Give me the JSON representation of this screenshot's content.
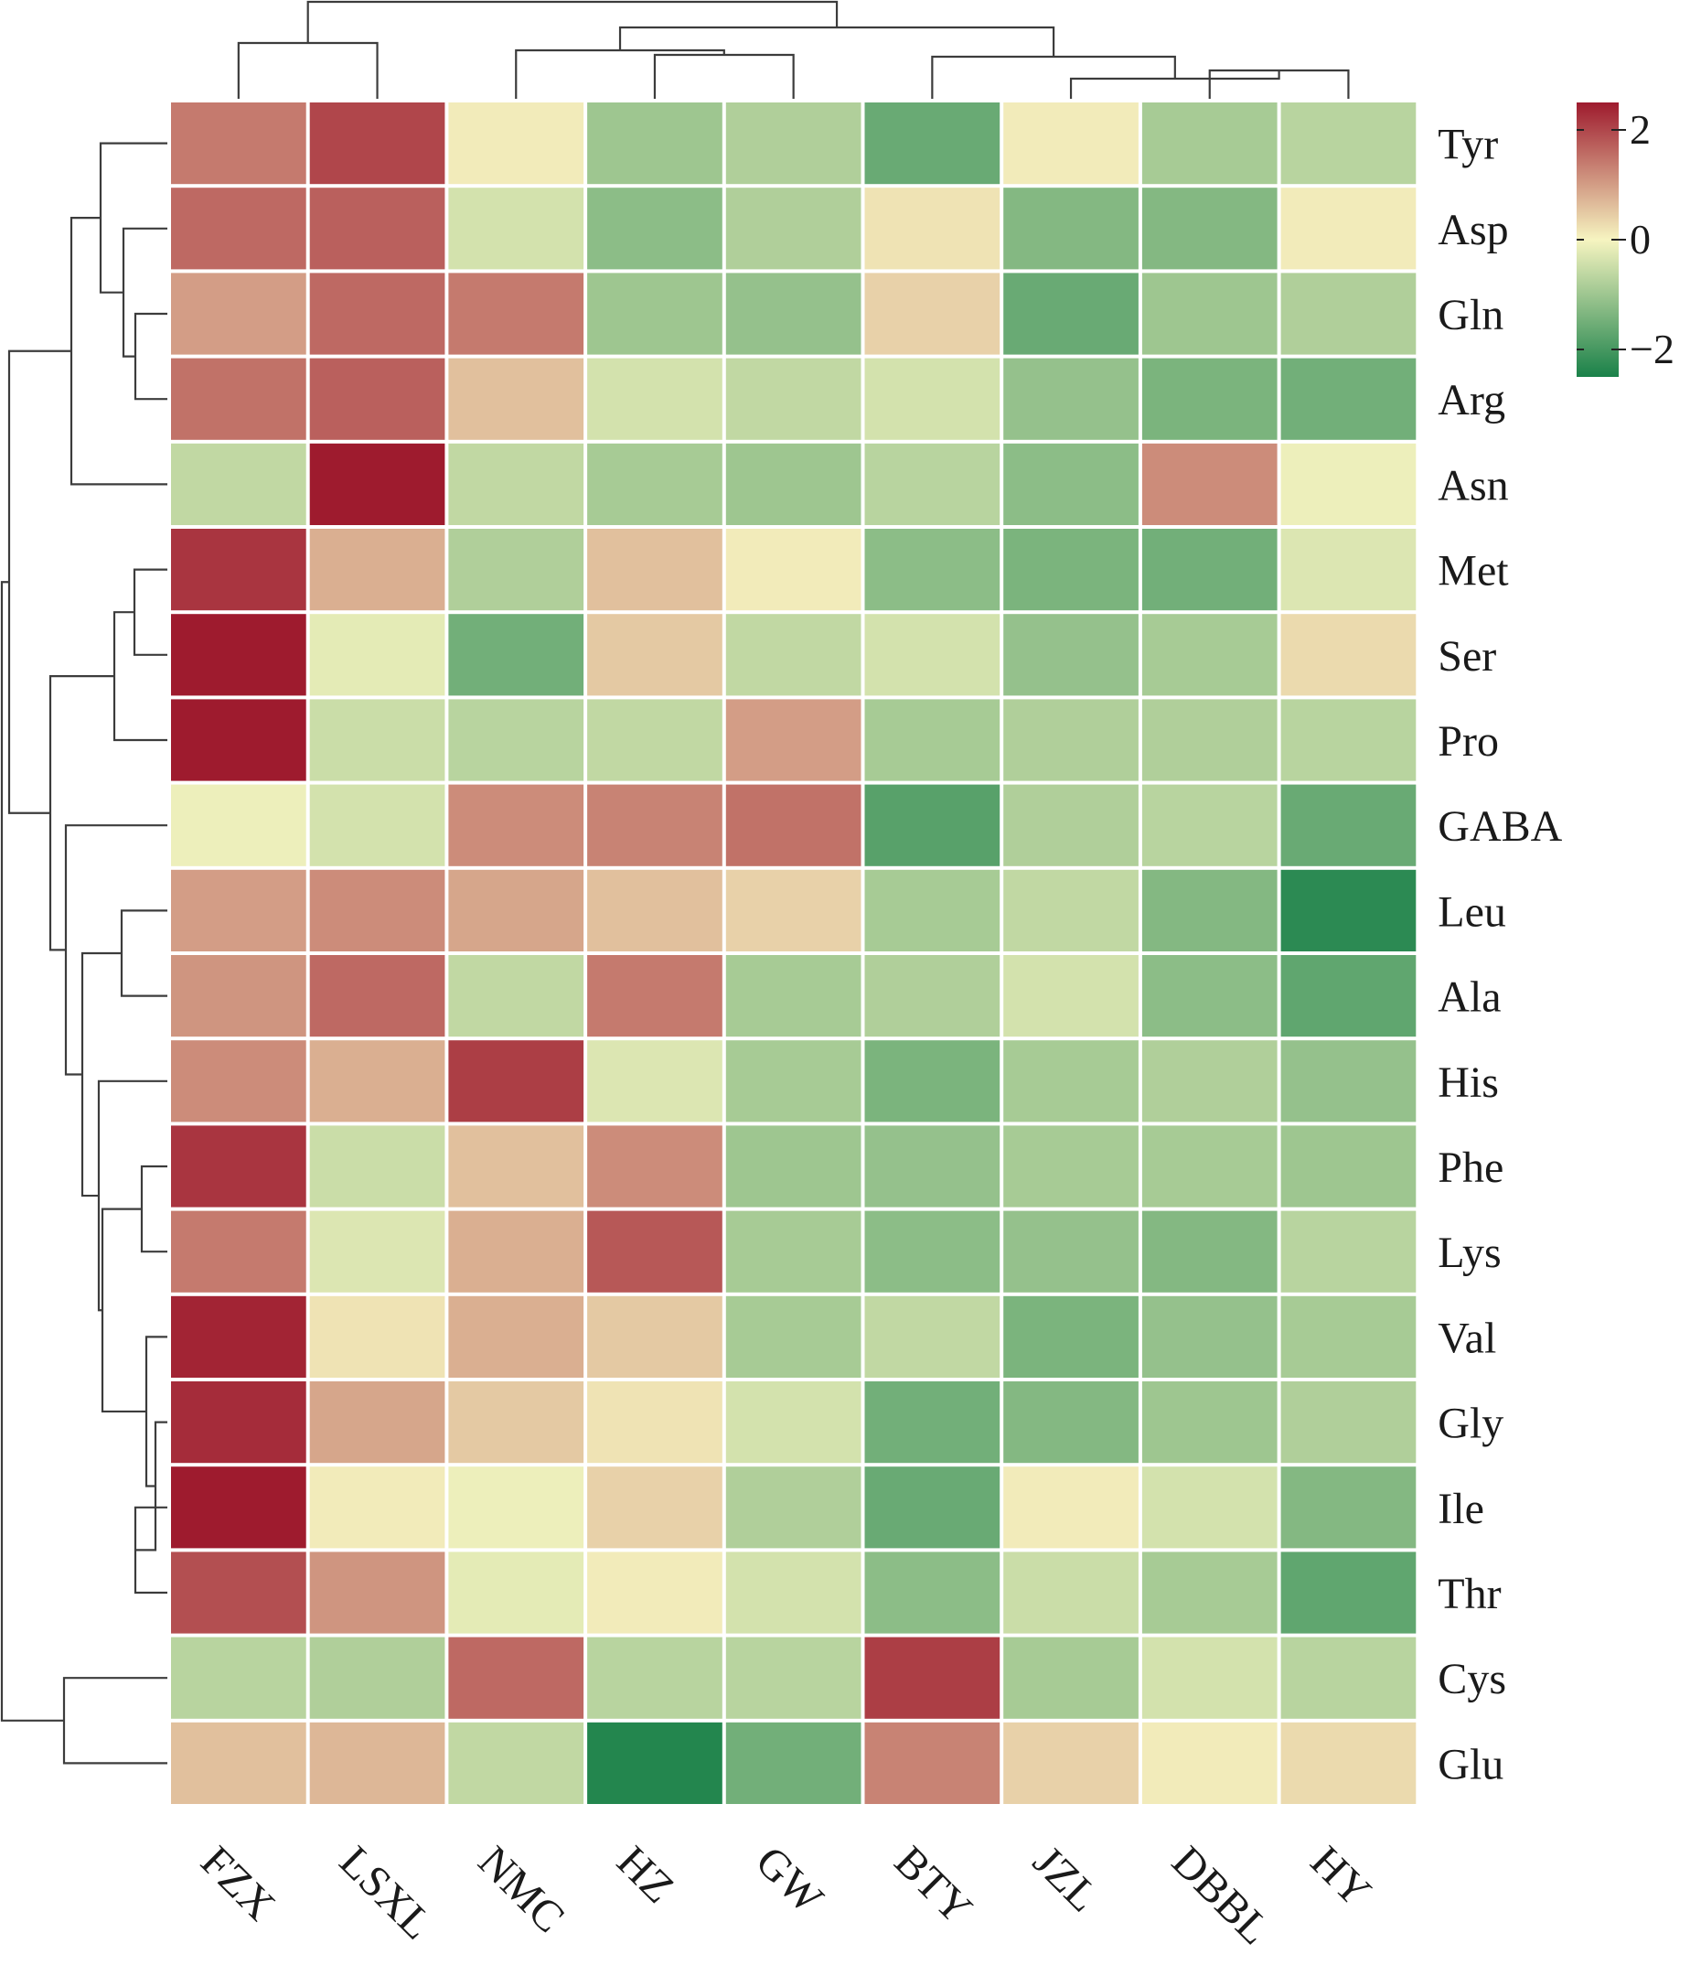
{
  "chart_data": {
    "type": "heatmap",
    "title": "",
    "columns": [
      "FZX",
      "LSXL",
      "NMC",
      "HZ",
      "GW",
      "BTY",
      "JZL",
      "DBBL",
      "HY"
    ],
    "rows": [
      "Tyr",
      "Asp",
      "Gln",
      "Arg",
      "Asn",
      "Met",
      "Ser",
      "Pro",
      "GABA",
      "Leu",
      "Ala",
      "His",
      "Phe",
      "Lys",
      "Val",
      "Gly",
      "Ile",
      "Thr",
      "Cys",
      "Glu"
    ],
    "values": [
      [
        1.4,
        2.0,
        0.1,
        -1.0,
        -0.8,
        -1.6,
        0.1,
        -0.9,
        -0.7
      ],
      [
        1.6,
        1.7,
        -0.4,
        -1.2,
        -0.8,
        0.2,
        -1.3,
        -1.3,
        0.1
      ],
      [
        1.0,
        1.6,
        1.4,
        -1.0,
        -1.1,
        0.4,
        -1.6,
        -1.0,
        -0.8
      ],
      [
        1.5,
        1.7,
        0.6,
        -0.4,
        -0.6,
        -0.4,
        -1.1,
        -1.4,
        -1.5
      ],
      [
        -0.6,
        2.5,
        -0.6,
        -0.9,
        -1.0,
        -0.7,
        -1.2,
        1.2,
        -0.1
      ],
      [
        2.2,
        0.8,
        -0.8,
        0.6,
        0.1,
        -1.2,
        -1.4,
        -1.5,
        -0.3
      ],
      [
        2.5,
        -0.2,
        -1.5,
        0.5,
        -0.6,
        -0.4,
        -1.1,
        -0.9,
        0.3
      ],
      [
        2.6,
        -0.5,
        -0.7,
        -0.6,
        1.0,
        -0.9,
        -0.8,
        -0.8,
        -0.7
      ],
      [
        -0.1,
        -0.4,
        1.2,
        1.3,
        1.5,
        -1.8,
        -0.8,
        -0.7,
        -1.6
      ],
      [
        1.0,
        1.2,
        0.9,
        0.6,
        0.4,
        -0.9,
        -0.6,
        -1.3,
        -2.3
      ],
      [
        1.1,
        1.6,
        -0.6,
        1.4,
        -0.9,
        -0.8,
        -0.4,
        -1.2,
        -1.7
      ],
      [
        1.2,
        0.8,
        2.1,
        -0.3,
        -0.9,
        -1.4,
        -0.9,
        -0.8,
        -1.1
      ],
      [
        2.2,
        -0.5,
        0.6,
        1.2,
        -1.0,
        -1.1,
        -0.9,
        -0.9,
        -1.0
      ],
      [
        1.4,
        -0.3,
        0.8,
        1.8,
        -0.9,
        -1.2,
        -1.1,
        -1.3,
        -0.7
      ],
      [
        2.4,
        0.2,
        0.8,
        0.5,
        -0.9,
        -0.6,
        -1.4,
        -1.1,
        -0.9
      ],
      [
        2.3,
        0.9,
        0.5,
        0.2,
        -0.4,
        -1.5,
        -1.3,
        -1.0,
        -0.8
      ],
      [
        2.5,
        0.1,
        -0.1,
        0.4,
        -0.8,
        -1.6,
        0.1,
        -0.4,
        -1.3
      ],
      [
        1.9,
        1.1,
        -0.2,
        0.1,
        -0.4,
        -1.2,
        -0.5,
        -0.9,
        -1.7
      ],
      [
        -0.7,
        -0.8,
        1.6,
        -0.7,
        -0.7,
        2.1,
        -0.9,
        -0.4,
        -0.7
      ],
      [
        0.6,
        0.7,
        -0.6,
        -2.4,
        -1.5,
        1.3,
        0.4,
        0.1,
        0.3
      ]
    ],
    "colorbar": {
      "range": [
        -2.5,
        2.5
      ],
      "ticks": [
        2,
        0,
        -2
      ],
      "tick_labels": [
        "2",
        "0",
        "−2"
      ]
    },
    "colormap": {
      "low": "#1a8149",
      "mid": "#f6f4c0",
      "high": "#9e1b2e"
    },
    "dendrogram_color": "#3c3c3c",
    "grid_color": "#ffffff"
  }
}
